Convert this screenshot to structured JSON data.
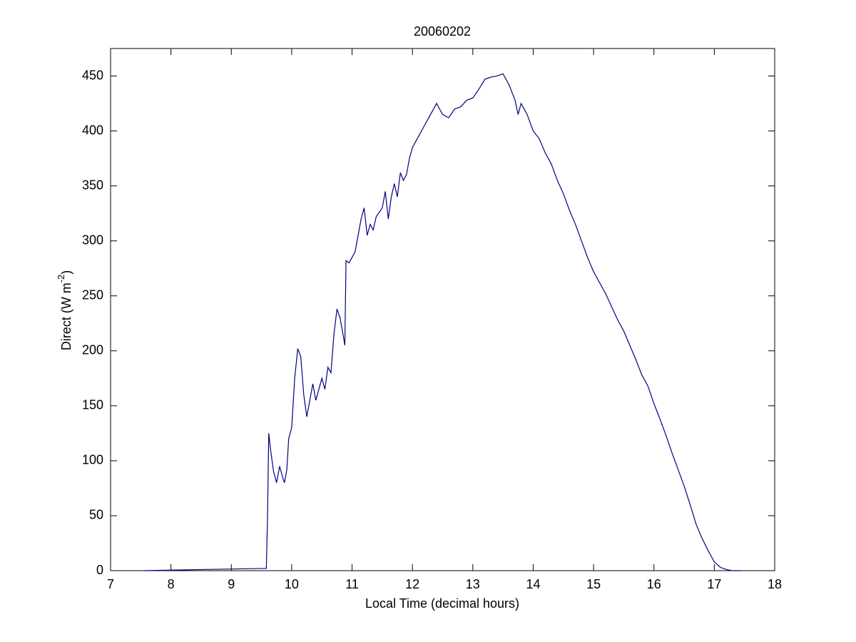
{
  "chart_data": {
    "type": "line",
    "title": "20060202",
    "xlabel": "Local Time (decimal hours)",
    "ylabel": {
      "base": "Direct (W m",
      "superscript": "-2",
      "suffix": ")"
    },
    "xlim": [
      7,
      18
    ],
    "ylim": [
      0,
      475
    ],
    "xticks": [
      7,
      8,
      9,
      10,
      11,
      12,
      13,
      14,
      15,
      16,
      17,
      18
    ],
    "yticks": [
      0,
      50,
      100,
      150,
      200,
      250,
      300,
      350,
      400,
      450
    ],
    "grid": false,
    "x": [
      7.55,
      8.0,
      8.5,
      9.0,
      9.5,
      9.58,
      9.6,
      9.62,
      9.65,
      9.7,
      9.75,
      9.8,
      9.85,
      9.88,
      9.92,
      9.95,
      10.0,
      10.05,
      10.1,
      10.15,
      10.2,
      10.25,
      10.3,
      10.35,
      10.4,
      10.45,
      10.5,
      10.55,
      10.6,
      10.65,
      10.7,
      10.75,
      10.8,
      10.85,
      10.88,
      10.9,
      10.95,
      11.0,
      11.05,
      11.1,
      11.15,
      11.2,
      11.25,
      11.3,
      11.35,
      11.4,
      11.5,
      11.55,
      11.6,
      11.65,
      11.7,
      11.75,
      11.8,
      11.85,
      11.9,
      11.95,
      12.0,
      12.1,
      12.2,
      12.3,
      12.4,
      12.45,
      12.5,
      12.6,
      12.7,
      12.8,
      12.9,
      13.0,
      13.1,
      13.2,
      13.3,
      13.4,
      13.5,
      13.6,
      13.7,
      13.75,
      13.8,
      13.9,
      14.0,
      14.1,
      14.2,
      14.3,
      14.4,
      14.5,
      14.6,
      14.7,
      14.8,
      14.9,
      15.0,
      15.1,
      15.2,
      15.3,
      15.4,
      15.5,
      15.6,
      15.7,
      15.8,
      15.9,
      16.0,
      16.1,
      16.2,
      16.3,
      16.4,
      16.5,
      16.6,
      16.7,
      16.8,
      16.9,
      17.0,
      17.1,
      17.2,
      17.3,
      17.45
    ],
    "series": [
      {
        "name": "Direct",
        "color": "#000080",
        "values": [
          0,
          0.5,
          1,
          1.5,
          2,
          2,
          50,
          125,
          110,
          90,
          80,
          95,
          85,
          80,
          92,
          120,
          130,
          175,
          202,
          195,
          160,
          140,
          155,
          170,
          155,
          165,
          175,
          165,
          185,
          180,
          215,
          238,
          230,
          215,
          205,
          282,
          280,
          285,
          290,
          305,
          320,
          330,
          305,
          315,
          310,
          322,
          330,
          345,
          320,
          340,
          352,
          340,
          362,
          355,
          360,
          375,
          385,
          395,
          405,
          415,
          425,
          420,
          415,
          412,
          420,
          422,
          428,
          430,
          438,
          447,
          449,
          450,
          452,
          442,
          428,
          415,
          425,
          415,
          400,
          393,
          380,
          370,
          355,
          343,
          328,
          315,
          300,
          285,
          272,
          262,
          252,
          240,
          228,
          218,
          205,
          192,
          178,
          168,
          152,
          138,
          123,
          107,
          92,
          77,
          60,
          42,
          29,
          18,
          8,
          3,
          1,
          0,
          0
        ]
      }
    ]
  }
}
